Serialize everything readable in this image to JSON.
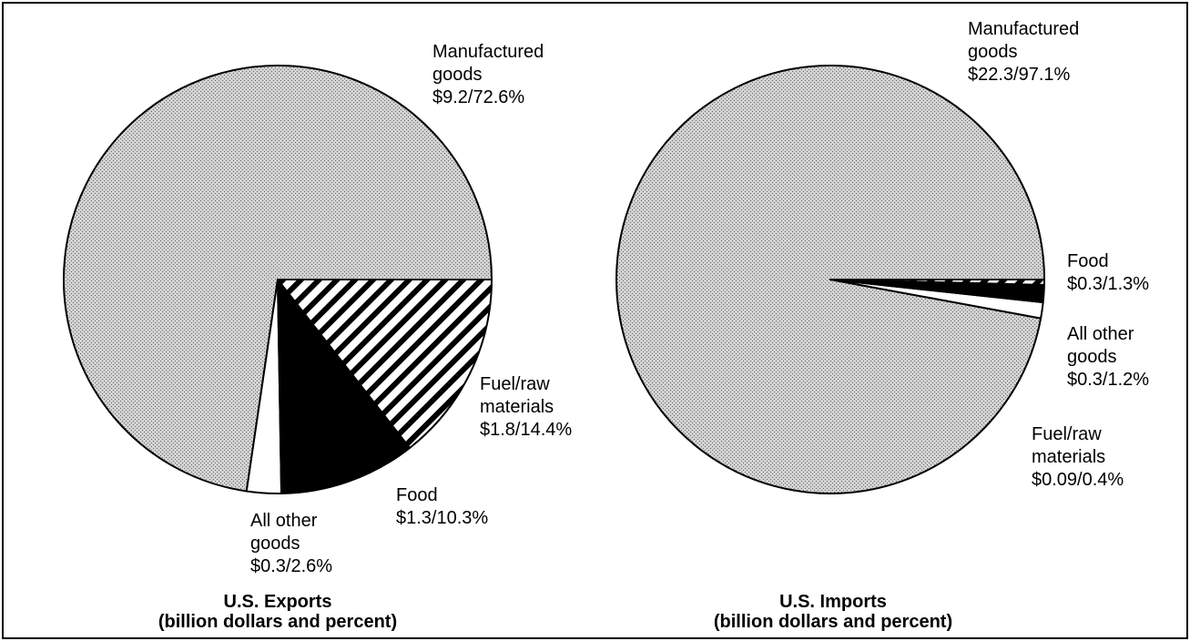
{
  "chart_data": [
    {
      "type": "pie",
      "title": "U.S. Exports",
      "subtitle": "(billion dollars and percent)",
      "categories": [
        "Manufactured goods",
        "All other goods",
        "Food",
        "Fuel/raw materials"
      ],
      "values": [
        72.6,
        2.6,
        10.3,
        14.4
      ],
      "value_labels": [
        "$9.2/72.6%",
        "$0.3/2.6%",
        "$1.3/10.3%",
        "$1.8/14.4%"
      ],
      "colors": [
        "#c4c4c4",
        "#ffffff",
        "#000000",
        "#ffffff"
      ],
      "patterns": [
        "stipple",
        "none",
        "none",
        "stripes"
      ]
    },
    {
      "type": "pie",
      "title": "U.S. Imports",
      "subtitle": "(billion dollars and percent)",
      "categories": [
        "Manufactured goods",
        "All other goods",
        "Food",
        "Fuel/raw materials"
      ],
      "values": [
        97.1,
        1.2,
        1.3,
        0.4
      ],
      "value_labels": [
        "$22.3/97.1%",
        "$0.3/1.2%",
        "$0.3/1.3%",
        "$0.09/0.4%"
      ],
      "colors": [
        "#c4c4c4",
        "#ffffff",
        "#000000",
        "#ffffff"
      ],
      "patterns": [
        "stipple",
        "none",
        "none",
        "stripes"
      ]
    }
  ]
}
